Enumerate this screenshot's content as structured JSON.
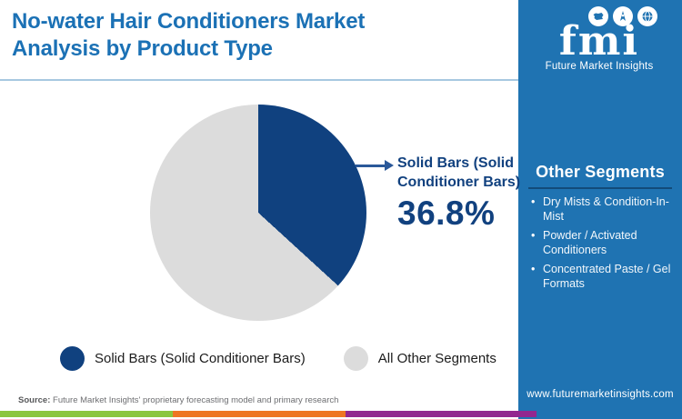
{
  "header": {
    "title_line1": "No-water Hair Conditioners Market",
    "title_line2": "Analysis by Product Type"
  },
  "sidebar": {
    "logo": {
      "monogram": "fmi",
      "name": "Future Market Insights",
      "icons": [
        "map-icon",
        "compass-icon",
        "globe-icon"
      ]
    },
    "other_segments": {
      "title": "Other Segments",
      "items": [
        "Dry Mists & Condition-In-Mist",
        "Powder / Activated Conditioners",
        "Concentrated Paste / Gel Formats"
      ]
    },
    "website": "www.futuremarketinsights.com",
    "background_color": "#1f73b2"
  },
  "callout": {
    "label": "Solid Bars (Solid Conditioner Bars)",
    "value": "36.8%"
  },
  "chart_data": {
    "type": "pie",
    "title": "No-water Hair Conditioners Market Analysis by Product Type",
    "slices": [
      {
        "label": "Solid Bars (Solid Conditioner Bars)",
        "value": 36.8,
        "color": "#10417f"
      },
      {
        "label": "All Other Segments",
        "value": 63.2,
        "color": "#dcdcdc"
      }
    ],
    "start_angle_deg": 0,
    "direction": "clockwise",
    "legend_position": "bottom",
    "annotation": "Solid Bars (Solid Conditioner Bars) 36.8%"
  },
  "footer": {
    "source_label": "Source:",
    "source_text": "Future Market Insights' proprietary forecasting model and primary research",
    "stripe_colors": [
      "#8cc63e",
      "#ee7623",
      "#92278f"
    ],
    "stripe_widths": [
      190,
      190,
      210
    ]
  },
  "colors": {
    "title_blue": "#1b71b5",
    "navy": "#10417f",
    "slice_gray": "#dcdcdc",
    "divider_light_blue": "#a7c8e0"
  }
}
